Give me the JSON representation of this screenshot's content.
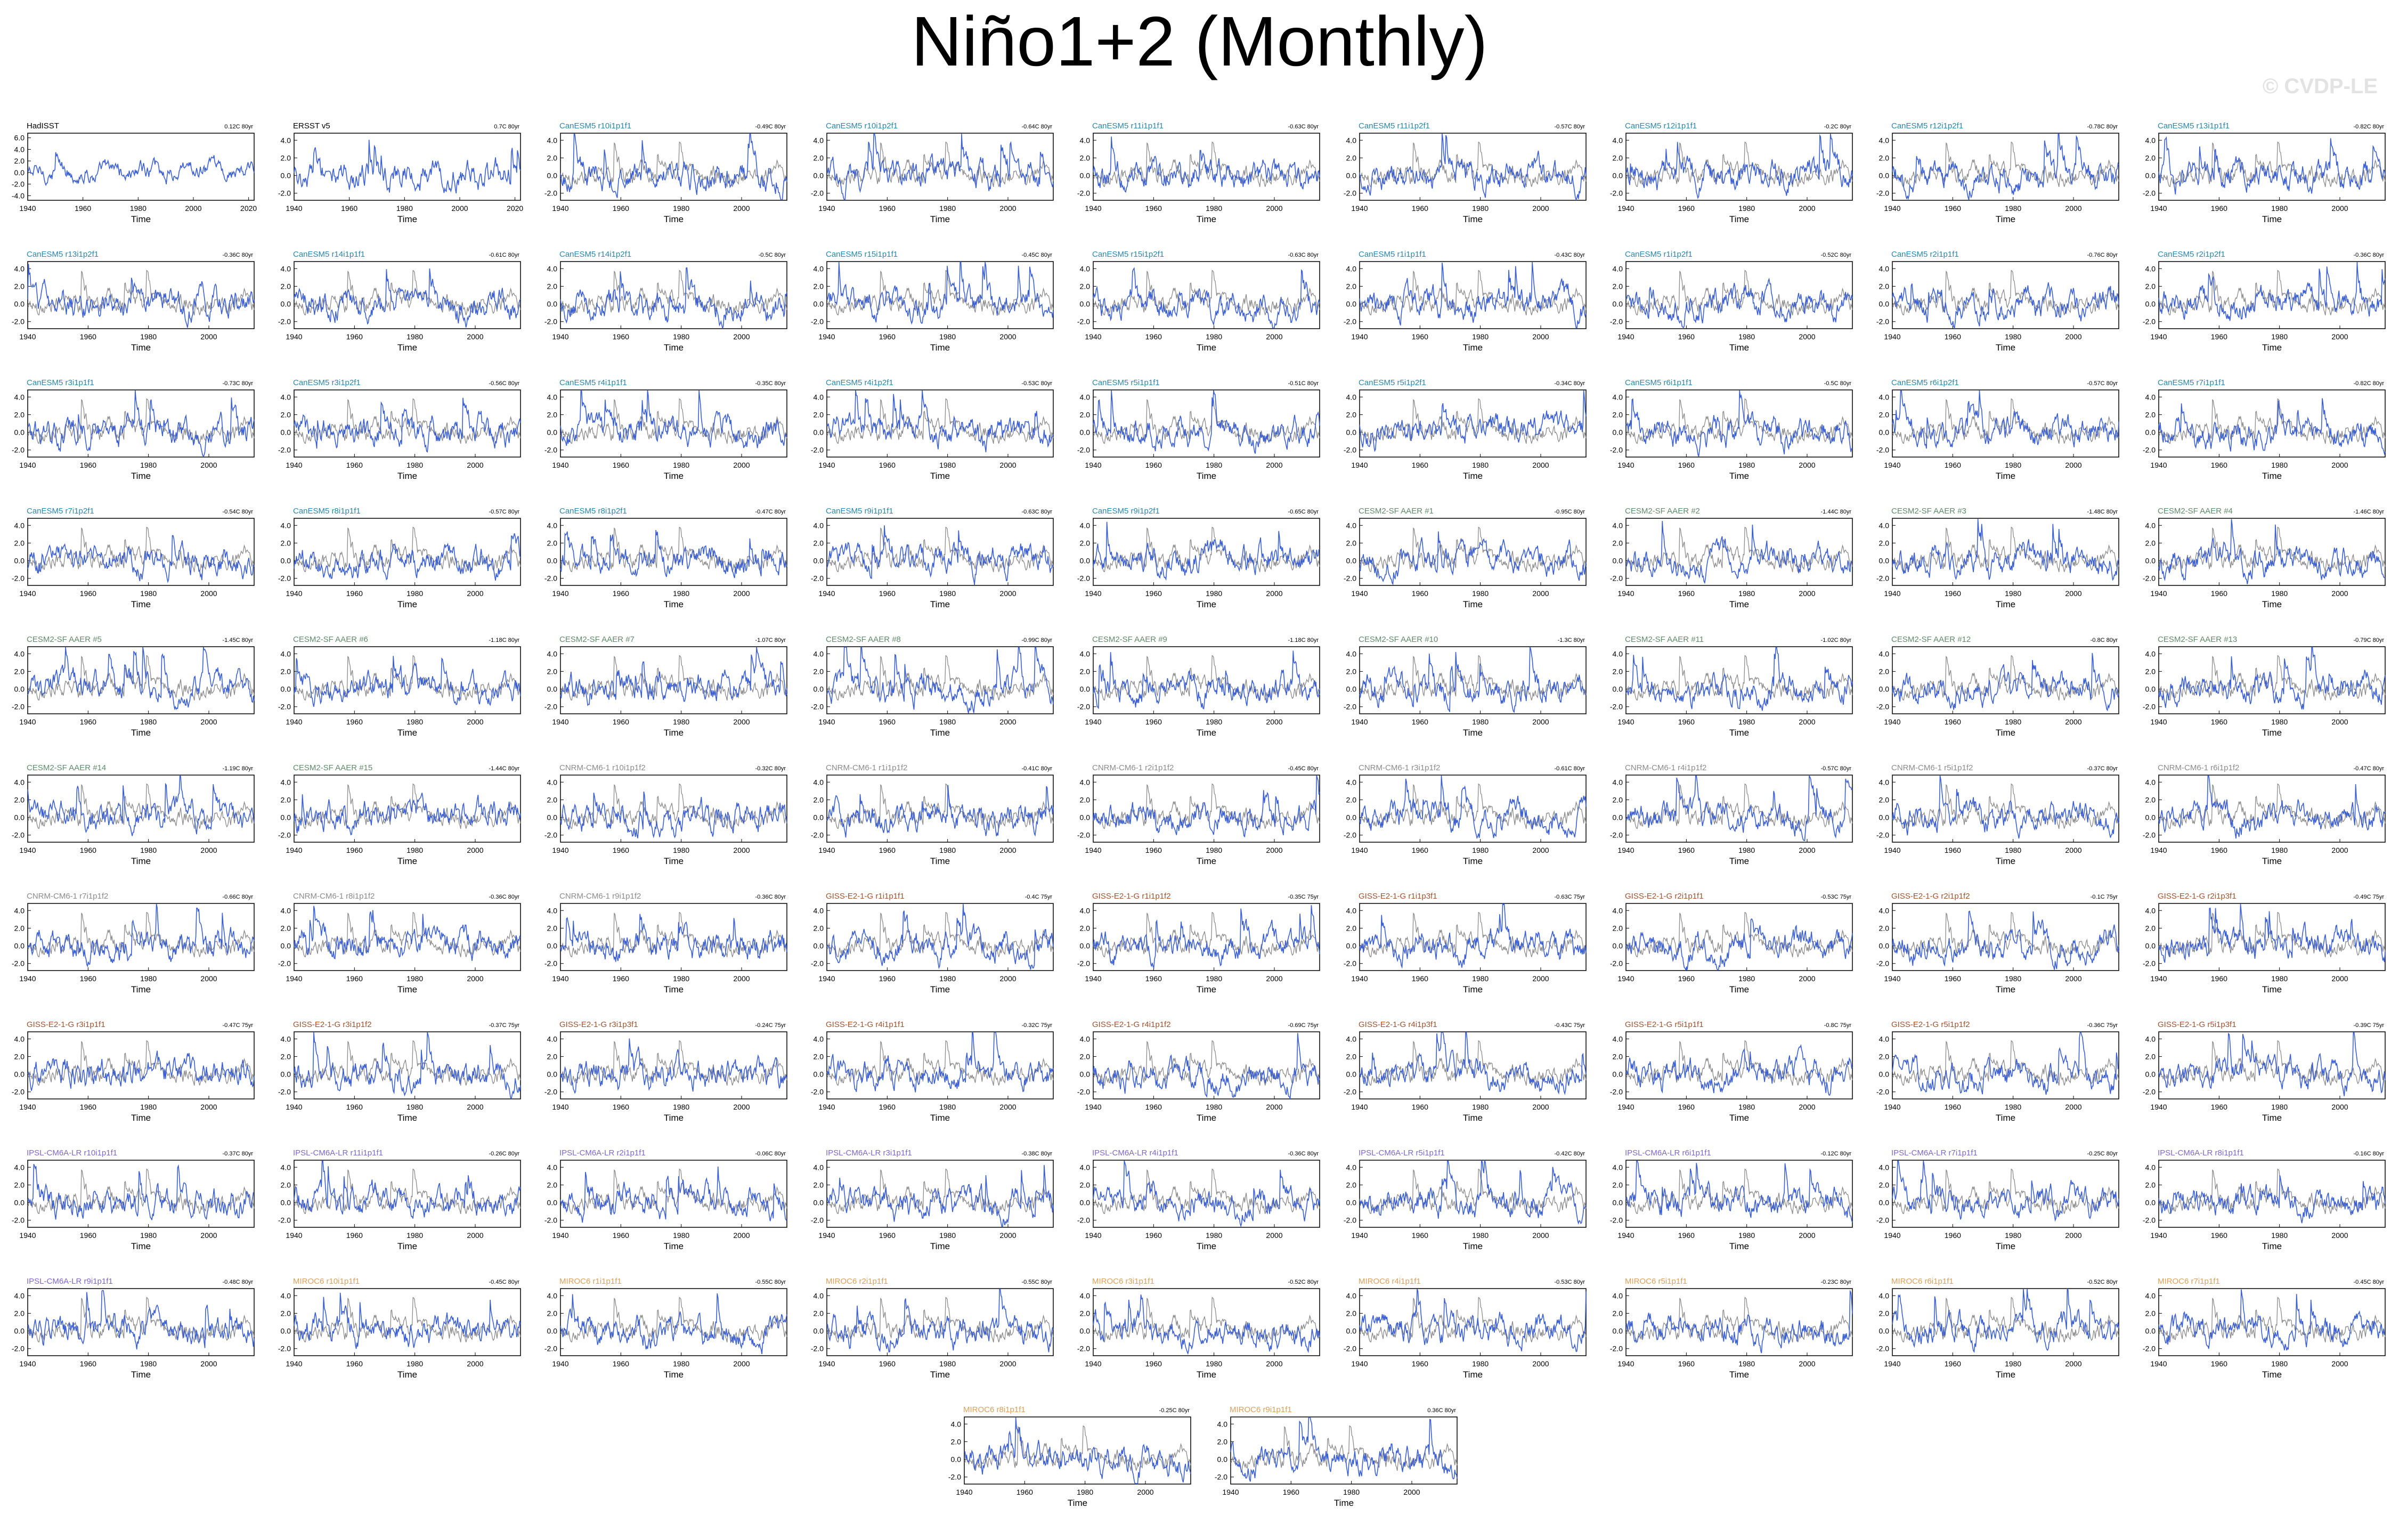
{
  "page": {
    "title": "Niño1+2 (Monthly)",
    "watermark": "© CVDP-LE"
  },
  "axis": {
    "xlabel": "Time",
    "xticks": [
      "1940",
      "1960",
      "1980",
      "2000"
    ],
    "yticks": [
      "-2.0",
      "0.0",
      "2.0",
      "4.0"
    ]
  },
  "first_panel_axes": {
    "HadISST": {
      "yticks": [
        "-4.0",
        "-2.0",
        "0.0",
        "2.0",
        "4.0",
        "6.0"
      ],
      "xticks": [
        "1940",
        "1960",
        "1980",
        "2000",
        "2020"
      ]
    },
    "ERSST v5": {
      "yticks": [
        "-2.0",
        "0.0",
        "2.0",
        "4.0"
      ],
      "xticks": [
        "1940",
        "1960",
        "1980",
        "2000",
        "2020"
      ]
    }
  },
  "colors": {
    "model_line": "#3b5fd4",
    "obs_line": "#8a8a8a",
    "obs_title": "#000000",
    "CanESM5": "#2a86a8",
    "CESM2-SF AAER": "#5f8a6a",
    "CNRM-CM6-1": "#8b8b8b",
    "GISS-E2-1-G": "#a0522d",
    "IPSL-CM6A-LR": "#7b68c8",
    "MIROC6": "#d9a05b"
  },
  "chart_data": [
    {
      "type": "line",
      "title": "HadISST",
      "group": "obs",
      "trend": "0.12C 80yr"
    },
    {
      "type": "line",
      "title": "ERSST v5",
      "group": "obs",
      "trend": "0.7C 80yr"
    },
    {
      "type": "line",
      "title": "CanESM5 r10i1p1f1",
      "group": "CanESM5",
      "trend": "-0.49C 80yr"
    },
    {
      "type": "line",
      "title": "CanESM5 r10i1p2f1",
      "group": "CanESM5",
      "trend": "-0.64C 80yr"
    },
    {
      "type": "line",
      "title": "CanESM5 r11i1p1f1",
      "group": "CanESM5",
      "trend": "-0.63C 80yr"
    },
    {
      "type": "line",
      "title": "CanESM5 r11i1p2f1",
      "group": "CanESM5",
      "trend": "-0.57C 80yr"
    },
    {
      "type": "line",
      "title": "CanESM5 r12i1p1f1",
      "group": "CanESM5",
      "trend": "-0.2C 80yr"
    },
    {
      "type": "line",
      "title": "CanESM5 r12i1p2f1",
      "group": "CanESM5",
      "trend": "-0.78C 80yr"
    },
    {
      "type": "line",
      "title": "CanESM5 r13i1p1f1",
      "group": "CanESM5",
      "trend": "-0.82C 80yr"
    },
    {
      "type": "line",
      "title": "CanESM5 r13i1p2f1",
      "group": "CanESM5",
      "trend": "-0.36C 80yr"
    },
    {
      "type": "line",
      "title": "CanESM5 r14i1p1f1",
      "group": "CanESM5",
      "trend": "-0.61C 80yr"
    },
    {
      "type": "line",
      "title": "CanESM5 r14i1p2f1",
      "group": "CanESM5",
      "trend": "-0.5C 80yr"
    },
    {
      "type": "line",
      "title": "CanESM5 r15i1p1f1",
      "group": "CanESM5",
      "trend": "-0.45C 80yr"
    },
    {
      "type": "line",
      "title": "CanESM5 r15i1p2f1",
      "group": "CanESM5",
      "trend": "-0.63C 80yr"
    },
    {
      "type": "line",
      "title": "CanESM5 r1i1p1f1",
      "group": "CanESM5",
      "trend": "-0.43C 80yr"
    },
    {
      "type": "line",
      "title": "CanESM5 r1i1p2f1",
      "group": "CanESM5",
      "trend": "-0.52C 80yr"
    },
    {
      "type": "line",
      "title": "CanESM5 r2i1p1f1",
      "group": "CanESM5",
      "trend": "-0.76C 80yr"
    },
    {
      "type": "line",
      "title": "CanESM5 r2i1p2f1",
      "group": "CanESM5",
      "trend": "-0.36C 80yr"
    },
    {
      "type": "line",
      "title": "CanESM5 r3i1p1f1",
      "group": "CanESM5",
      "trend": "-0.73C 80yr"
    },
    {
      "type": "line",
      "title": "CanESM5 r3i1p2f1",
      "group": "CanESM5",
      "trend": "-0.56C 80yr"
    },
    {
      "type": "line",
      "title": "CanESM5 r4i1p1f1",
      "group": "CanESM5",
      "trend": "-0.35C 80yr"
    },
    {
      "type": "line",
      "title": "CanESM5 r4i1p2f1",
      "group": "CanESM5",
      "trend": "-0.53C 80yr"
    },
    {
      "type": "line",
      "title": "CanESM5 r5i1p1f1",
      "group": "CanESM5",
      "trend": "-0.51C 80yr"
    },
    {
      "type": "line",
      "title": "CanESM5 r5i1p2f1",
      "group": "CanESM5",
      "trend": "-0.34C 80yr"
    },
    {
      "type": "line",
      "title": "CanESM5 r6i1p1f1",
      "group": "CanESM5",
      "trend": "-0.5C 80yr"
    },
    {
      "type": "line",
      "title": "CanESM5 r6i1p2f1",
      "group": "CanESM5",
      "trend": "-0.57C 80yr"
    },
    {
      "type": "line",
      "title": "CanESM5 r7i1p1f1",
      "group": "CanESM5",
      "trend": "-0.82C 80yr"
    },
    {
      "type": "line",
      "title": "CanESM5 r7i1p2f1",
      "group": "CanESM5",
      "trend": "-0.54C 80yr"
    },
    {
      "type": "line",
      "title": "CanESM5 r8i1p1f1",
      "group": "CanESM5",
      "trend": "-0.57C 80yr"
    },
    {
      "type": "line",
      "title": "CanESM5 r8i1p2f1",
      "group": "CanESM5",
      "trend": "-0.47C 80yr"
    },
    {
      "type": "line",
      "title": "CanESM5 r9i1p1f1",
      "group": "CanESM5",
      "trend": "-0.63C 80yr"
    },
    {
      "type": "line",
      "title": "CanESM5 r9i1p2f1",
      "group": "CanESM5",
      "trend": "-0.65C 80yr"
    },
    {
      "type": "line",
      "title": "CESM2-SF AAER #1",
      "group": "CESM2-SF AAER",
      "trend": "-0.95C 80yr"
    },
    {
      "type": "line",
      "title": "CESM2-SF AAER #2",
      "group": "CESM2-SF AAER",
      "trend": "-1.44C 80yr"
    },
    {
      "type": "line",
      "title": "CESM2-SF AAER #3",
      "group": "CESM2-SF AAER",
      "trend": "-1.48C 80yr"
    },
    {
      "type": "line",
      "title": "CESM2-SF AAER #4",
      "group": "CESM2-SF AAER",
      "trend": "-1.46C 80yr"
    },
    {
      "type": "line",
      "title": "CESM2-SF AAER #5",
      "group": "CESM2-SF AAER",
      "trend": "-1.45C 80yr"
    },
    {
      "type": "line",
      "title": "CESM2-SF AAER #6",
      "group": "CESM2-SF AAER",
      "trend": "-1.18C 80yr"
    },
    {
      "type": "line",
      "title": "CESM2-SF AAER #7",
      "group": "CESM2-SF AAER",
      "trend": "-1.07C 80yr"
    },
    {
      "type": "line",
      "title": "CESM2-SF AAER #8",
      "group": "CESM2-SF AAER",
      "trend": "-0.99C 80yr"
    },
    {
      "type": "line",
      "title": "CESM2-SF AAER #9",
      "group": "CESM2-SF AAER",
      "trend": "-1.18C 80yr"
    },
    {
      "type": "line",
      "title": "CESM2-SF AAER #10",
      "group": "CESM2-SF AAER",
      "trend": "-1.3C 80yr"
    },
    {
      "type": "line",
      "title": "CESM2-SF AAER #11",
      "group": "CESM2-SF AAER",
      "trend": "-1.02C 80yr"
    },
    {
      "type": "line",
      "title": "CESM2-SF AAER #12",
      "group": "CESM2-SF AAER",
      "trend": "-0.8C 80yr"
    },
    {
      "type": "line",
      "title": "CESM2-SF AAER #13",
      "group": "CESM2-SF AAER",
      "trend": "-0.79C 80yr"
    },
    {
      "type": "line",
      "title": "CESM2-SF AAER #14",
      "group": "CESM2-SF AAER",
      "trend": "-1.19C 80yr"
    },
    {
      "type": "line",
      "title": "CESM2-SF AAER #15",
      "group": "CESM2-SF AAER",
      "trend": "-1.44C 80yr"
    },
    {
      "type": "line",
      "title": "CNRM-CM6-1 r10i1p1f2",
      "group": "CNRM-CM6-1",
      "trend": "-0.32C 80yr"
    },
    {
      "type": "line",
      "title": "CNRM-CM6-1 r1i1p1f2",
      "group": "CNRM-CM6-1",
      "trend": "-0.41C 80yr"
    },
    {
      "type": "line",
      "title": "CNRM-CM6-1 r2i1p1f2",
      "group": "CNRM-CM6-1",
      "trend": "-0.45C 80yr"
    },
    {
      "type": "line",
      "title": "CNRM-CM6-1 r3i1p1f2",
      "group": "CNRM-CM6-1",
      "trend": "-0.61C 80yr"
    },
    {
      "type": "line",
      "title": "CNRM-CM6-1 r4i1p1f2",
      "group": "CNRM-CM6-1",
      "trend": "-0.57C 80yr"
    },
    {
      "type": "line",
      "title": "CNRM-CM6-1 r5i1p1f2",
      "group": "CNRM-CM6-1",
      "trend": "-0.37C 80yr"
    },
    {
      "type": "line",
      "title": "CNRM-CM6-1 r6i1p1f2",
      "group": "CNRM-CM6-1",
      "trend": "-0.47C 80yr"
    },
    {
      "type": "line",
      "title": "CNRM-CM6-1 r7i1p1f2",
      "group": "CNRM-CM6-1",
      "trend": "-0.66C 80yr"
    },
    {
      "type": "line",
      "title": "CNRM-CM6-1 r8i1p1f2",
      "group": "CNRM-CM6-1",
      "trend": "-0.36C 80yr"
    },
    {
      "type": "line",
      "title": "CNRM-CM6-1 r9i1p1f2",
      "group": "CNRM-CM6-1",
      "trend": "-0.36C 80yr"
    },
    {
      "type": "line",
      "title": "GISS-E2-1-G r1i1p1f1",
      "group": "GISS-E2-1-G",
      "trend": "-0.4C 75yr"
    },
    {
      "type": "line",
      "title": "GISS-E2-1-G r1i1p1f2",
      "group": "GISS-E2-1-G",
      "trend": "-0.35C 75yr"
    },
    {
      "type": "line",
      "title": "GISS-E2-1-G r1i1p3f1",
      "group": "GISS-E2-1-G",
      "trend": "-0.63C 75yr"
    },
    {
      "type": "line",
      "title": "GISS-E2-1-G r2i1p1f1",
      "group": "GISS-E2-1-G",
      "trend": "-0.53C 75yr"
    },
    {
      "type": "line",
      "title": "GISS-E2-1-G r2i1p1f2",
      "group": "GISS-E2-1-G",
      "trend": "-0.1C 75yr"
    },
    {
      "type": "line",
      "title": "GISS-E2-1-G r2i1p3f1",
      "group": "GISS-E2-1-G",
      "trend": "-0.49C 75yr"
    },
    {
      "type": "line",
      "title": "GISS-E2-1-G r3i1p1f1",
      "group": "GISS-E2-1-G",
      "trend": "-0.47C 75yr"
    },
    {
      "type": "line",
      "title": "GISS-E2-1-G r3i1p1f2",
      "group": "GISS-E2-1-G",
      "trend": "-0.37C 75yr"
    },
    {
      "type": "line",
      "title": "GISS-E2-1-G r3i1p3f1",
      "group": "GISS-E2-1-G",
      "trend": "-0.24C 75yr"
    },
    {
      "type": "line",
      "title": "GISS-E2-1-G r4i1p1f1",
      "group": "GISS-E2-1-G",
      "trend": "-0.32C 75yr"
    },
    {
      "type": "line",
      "title": "GISS-E2-1-G r4i1p1f2",
      "group": "GISS-E2-1-G",
      "trend": "-0.69C 75yr"
    },
    {
      "type": "line",
      "title": "GISS-E2-1-G r4i1p3f1",
      "group": "GISS-E2-1-G",
      "trend": "-0.43C 75yr"
    },
    {
      "type": "line",
      "title": "GISS-E2-1-G r5i1p1f1",
      "group": "GISS-E2-1-G",
      "trend": "-0.8C 75yr"
    },
    {
      "type": "line",
      "title": "GISS-E2-1-G r5i1p1f2",
      "group": "GISS-E2-1-G",
      "trend": "-0.36C 75yr"
    },
    {
      "type": "line",
      "title": "GISS-E2-1-G r5i1p3f1",
      "group": "GISS-E2-1-G",
      "trend": "-0.39C 75yr"
    },
    {
      "type": "line",
      "title": "IPSL-CM6A-LR r10i1p1f1",
      "group": "IPSL-CM6A-LR",
      "trend": "-0.37C 80yr"
    },
    {
      "type": "line",
      "title": "IPSL-CM6A-LR r11i1p1f1",
      "group": "IPSL-CM6A-LR",
      "trend": "-0.26C 80yr"
    },
    {
      "type": "line",
      "title": "IPSL-CM6A-LR r2i1p1f1",
      "group": "IPSL-CM6A-LR",
      "trend": "-0.06C 80yr"
    },
    {
      "type": "line",
      "title": "IPSL-CM6A-LR r3i1p1f1",
      "group": "IPSL-CM6A-LR",
      "trend": "-0.38C 80yr"
    },
    {
      "type": "line",
      "title": "IPSL-CM6A-LR r4i1p1f1",
      "group": "IPSL-CM6A-LR",
      "trend": "-0.36C 80yr"
    },
    {
      "type": "line",
      "title": "IPSL-CM6A-LR r5i1p1f1",
      "group": "IPSL-CM6A-LR",
      "trend": "-0.42C 80yr"
    },
    {
      "type": "line",
      "title": "IPSL-CM6A-LR r6i1p1f1",
      "group": "IPSL-CM6A-LR",
      "trend": "-0.12C 80yr"
    },
    {
      "type": "line",
      "title": "IPSL-CM6A-LR r7i1p1f1",
      "group": "IPSL-CM6A-LR",
      "trend": "-0.25C 80yr"
    },
    {
      "type": "line",
      "title": "IPSL-CM6A-LR r8i1p1f1",
      "group": "IPSL-CM6A-LR",
      "trend": "-0.16C 80yr"
    },
    {
      "type": "line",
      "title": "IPSL-CM6A-LR r9i1p1f1",
      "group": "IPSL-CM6A-LR",
      "trend": "-0.48C 80yr"
    },
    {
      "type": "line",
      "title": "MIROC6 r10i1p1f1",
      "group": "MIROC6",
      "trend": "-0.45C 80yr"
    },
    {
      "type": "line",
      "title": "MIROC6 r1i1p1f1",
      "group": "MIROC6",
      "trend": "-0.55C 80yr"
    },
    {
      "type": "line",
      "title": "MIROC6 r2i1p1f1",
      "group": "MIROC6",
      "trend": "-0.55C 80yr"
    },
    {
      "type": "line",
      "title": "MIROC6 r3i1p1f1",
      "group": "MIROC6",
      "trend": "-0.52C 80yr"
    },
    {
      "type": "line",
      "title": "MIROC6 r4i1p1f1",
      "group": "MIROC6",
      "trend": "-0.53C 80yr"
    },
    {
      "type": "line",
      "title": "MIROC6 r5i1p1f1",
      "group": "MIROC6",
      "trend": "-0.23C 80yr"
    },
    {
      "type": "line",
      "title": "MIROC6 r6i1p1f1",
      "group": "MIROC6",
      "trend": "-0.52C 80yr"
    },
    {
      "type": "line",
      "title": "MIROC6 r7i1p1f1",
      "group": "MIROC6",
      "trend": "-0.45C 80yr"
    },
    {
      "type": "line",
      "title": "MIROC6 r8i1p1f1",
      "group": "MIROC6",
      "trend": "-0.25C 80yr"
    },
    {
      "type": "line",
      "title": "MIROC6 r9i1p1f1",
      "group": "MIROC6",
      "trend": "0.36C 80yr"
    }
  ]
}
